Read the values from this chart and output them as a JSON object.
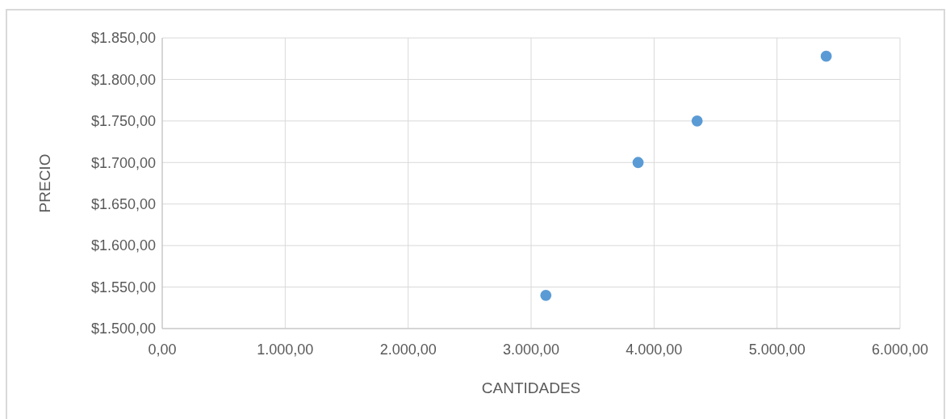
{
  "chart_data": {
    "type": "scatter",
    "xlabel": "CANTIDADES",
    "ylabel": "PRECIO",
    "x": [
      3120,
      3870,
      4350,
      5400
    ],
    "series": [
      {
        "color": "#5b9bd5",
        "values": [
          1540,
          1700,
          1750,
          1828
        ]
      }
    ],
    "xlim": [
      0,
      6000
    ],
    "xticks": [
      {
        "value": 0,
        "label": "0,00"
      },
      {
        "value": 1000,
        "label": "1.000,00"
      },
      {
        "value": 2000,
        "label": "2.000,00"
      },
      {
        "value": 3000,
        "label": "3.000,00"
      },
      {
        "value": 4000,
        "label": "4.000,00"
      },
      {
        "value": 5000,
        "label": "5.000,00"
      },
      {
        "value": 6000,
        "label": "6.000,00"
      }
    ],
    "ylim": [
      1500,
      1850
    ],
    "yticks": [
      {
        "value": 1500,
        "label": "$1.500,00"
      },
      {
        "value": 1550,
        "label": "$1.550,00"
      },
      {
        "value": 1600,
        "label": "$1.600,00"
      },
      {
        "value": 1650,
        "label": "$1.650,00"
      },
      {
        "value": 1700,
        "label": "$1.700,00"
      },
      {
        "value": 1750,
        "label": "$1.750,00"
      },
      {
        "value": 1800,
        "label": "$1.800,00"
      },
      {
        "value": 1850,
        "label": "$1.850,00"
      }
    ],
    "grid": true,
    "marker": "circle"
  }
}
